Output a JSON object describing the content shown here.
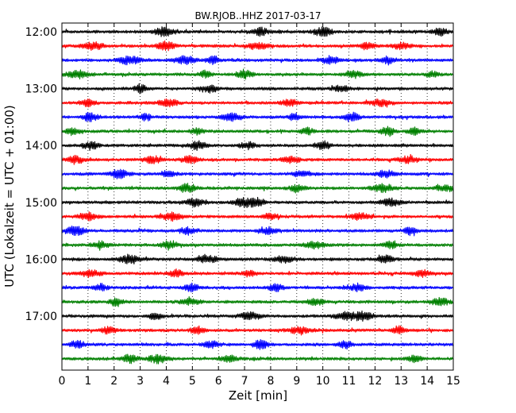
{
  "chart_data": {
    "type": "line",
    "title": "BW.RJOB..HHZ 2017-03-17",
    "xlabel": "Zeit  [min]",
    "ylabel": "UTC (Lokalzeit = UTC + 01:00)",
    "xlim": [
      0,
      15
    ],
    "x_ticks": [
      "0",
      "1",
      "2",
      "3",
      "4",
      "5",
      "6",
      "7",
      "8",
      "9",
      "10",
      "11",
      "12",
      "13",
      "14",
      "15"
    ],
    "y_tick_labels": [
      "12:00",
      "13:00",
      "14:00",
      "15:00",
      "16:00",
      "17:00"
    ],
    "grid": true,
    "trace_colors": [
      "#000000",
      "#ff0000",
      "#0000ff",
      "#008000"
    ],
    "traces_start": "12:00",
    "trace_interval_min": 15,
    "trace_count": 24,
    "bursts": [
      [
        [
          3.9,
          1.0
        ],
        [
          7.6,
          0.9
        ],
        [
          10.0,
          1.0
        ],
        [
          14.5,
          0.8
        ]
      ],
      [
        [
          1.2,
          0.9
        ],
        [
          4.0,
          0.9
        ],
        [
          7.5,
          0.7
        ],
        [
          11.7,
          0.7
        ],
        [
          13.0,
          0.7
        ]
      ],
      [
        [
          2.6,
          1.0
        ],
        [
          4.7,
          0.9
        ],
        [
          5.8,
          0.9
        ],
        [
          10.3,
          0.8
        ],
        [
          12.5,
          0.8
        ]
      ],
      [
        [
          0.6,
          0.8
        ],
        [
          5.5,
          0.8
        ],
        [
          7.0,
          1.0
        ],
        [
          11.2,
          0.7
        ],
        [
          14.2,
          0.7
        ]
      ],
      [
        [
          3.0,
          0.9
        ],
        [
          5.7,
          0.8
        ],
        [
          10.7,
          0.7
        ]
      ],
      [
        [
          1.0,
          0.7
        ],
        [
          4.1,
          0.8
        ],
        [
          8.7,
          0.7
        ],
        [
          12.2,
          0.7
        ]
      ],
      [
        [
          1.1,
          1.0
        ],
        [
          3.2,
          0.8
        ],
        [
          6.5,
          0.8
        ],
        [
          8.9,
          0.8
        ],
        [
          11.1,
          1.1
        ]
      ],
      [
        [
          0.4,
          0.7
        ],
        [
          5.2,
          0.7
        ],
        [
          9.4,
          0.7
        ],
        [
          12.5,
          1.1
        ],
        [
          13.5,
          0.8
        ]
      ],
      [
        [
          1.1,
          0.8
        ],
        [
          5.2,
          0.9
        ],
        [
          7.1,
          0.8
        ],
        [
          10.0,
          0.9
        ]
      ],
      [
        [
          0.5,
          0.8
        ],
        [
          3.5,
          0.7
        ],
        [
          4.9,
          0.9
        ],
        [
          8.8,
          0.8
        ],
        [
          13.3,
          0.7
        ]
      ],
      [
        [
          2.2,
          1.1
        ],
        [
          4.1,
          0.8
        ],
        [
          9.2,
          0.7
        ],
        [
          12.4,
          0.8
        ]
      ],
      [
        [
          4.8,
          1.0
        ],
        [
          9.0,
          0.7
        ],
        [
          12.3,
          0.9
        ],
        [
          14.7,
          0.7
        ]
      ],
      [
        [
          5.1,
          0.9
        ],
        [
          7.0,
          1.2
        ],
        [
          7.5,
          1.1
        ],
        [
          12.6,
          0.8
        ]
      ],
      [
        [
          1.0,
          0.8
        ],
        [
          4.2,
          0.8
        ],
        [
          8.0,
          0.7
        ],
        [
          11.4,
          0.7
        ]
      ],
      [
        [
          0.5,
          1.0
        ],
        [
          4.8,
          0.8
        ],
        [
          7.9,
          0.7
        ],
        [
          13.4,
          1.1
        ]
      ],
      [
        [
          1.5,
          0.7
        ],
        [
          4.1,
          0.8
        ],
        [
          9.7,
          0.7
        ],
        [
          12.6,
          0.8
        ]
      ],
      [
        [
          2.6,
          1.0
        ],
        [
          5.6,
          0.8
        ],
        [
          8.5,
          0.7
        ],
        [
          12.4,
          0.9
        ]
      ],
      [
        [
          1.1,
          0.7
        ],
        [
          4.4,
          0.9
        ],
        [
          7.2,
          0.7
        ],
        [
          13.8,
          0.8
        ]
      ],
      [
        [
          1.5,
          0.8
        ],
        [
          5.0,
          0.8
        ],
        [
          8.2,
          0.8
        ],
        [
          11.3,
          0.7
        ]
      ],
      [
        [
          2.1,
          0.9
        ],
        [
          4.9,
          0.7
        ],
        [
          9.7,
          0.8
        ],
        [
          14.5,
          0.8
        ]
      ],
      [
        [
          3.6,
          0.8
        ],
        [
          7.2,
          0.8
        ],
        [
          10.8,
          0.8
        ],
        [
          11.5,
          1.0
        ]
      ],
      [
        [
          1.8,
          0.8
        ],
        [
          5.2,
          0.8
        ],
        [
          9.1,
          0.7
        ],
        [
          12.9,
          0.9
        ]
      ],
      [
        [
          0.6,
          0.8
        ],
        [
          5.7,
          0.7
        ],
        [
          7.6,
          1.1
        ],
        [
          10.9,
          0.8
        ]
      ],
      [
        [
          2.6,
          0.9
        ],
        [
          3.7,
          1.0
        ],
        [
          6.4,
          0.7
        ],
        [
          13.5,
          0.7
        ]
      ]
    ]
  }
}
